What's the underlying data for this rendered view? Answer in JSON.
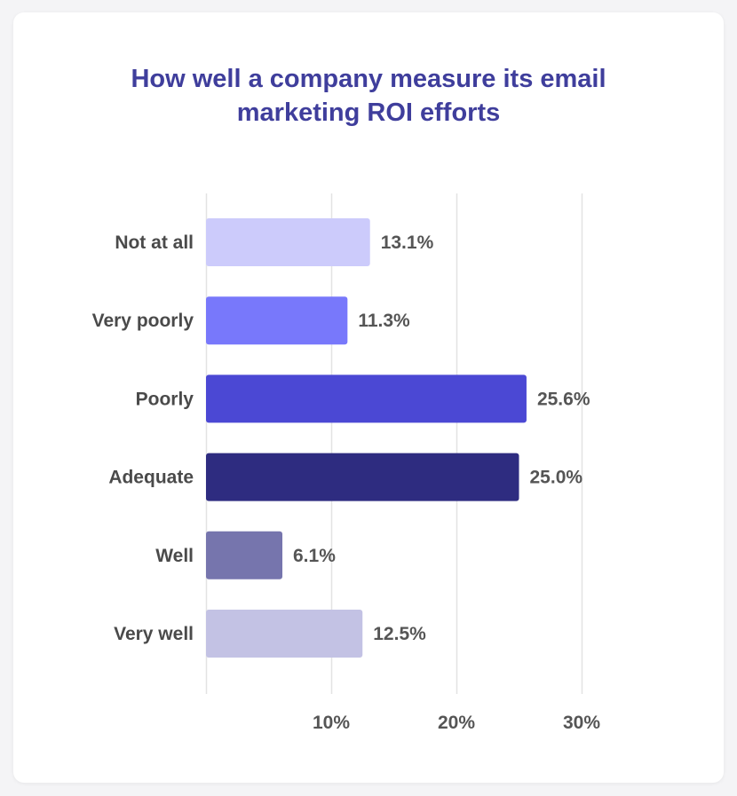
{
  "chart_data": {
    "type": "bar",
    "orientation": "horizontal",
    "title": "How well a company measure its email marketing ROI efforts",
    "title_lines": [
      "How well a company measure its email",
      "marketing ROI efforts"
    ],
    "categories": [
      "Not at all",
      "Very poorly",
      "Poorly",
      "Adequate",
      "Well",
      "Very well"
    ],
    "values": [
      13.1,
      11.3,
      25.6,
      25.0,
      6.1,
      12.5
    ],
    "value_labels": [
      "13.1%",
      "11.3%",
      "25.6%",
      "25.0%",
      "6.1%",
      "12.5%"
    ],
    "bar_colors": [
      "#cccbfb",
      "#7878fb",
      "#4b48d4",
      "#2e2c80",
      "#7675ad",
      "#c3c2e4"
    ],
    "xticks": [
      10,
      20,
      30
    ],
    "xtick_labels": [
      "10%",
      "20%",
      "30%"
    ],
    "xlim": [
      0,
      30
    ],
    "grid": true,
    "xlabel": "",
    "ylabel": ""
  },
  "colors": {
    "title": "#3f3e9c",
    "grid": "#e3e3e3",
    "card_background": "#ffffff",
    "page_background": "#f4f4f6"
  }
}
